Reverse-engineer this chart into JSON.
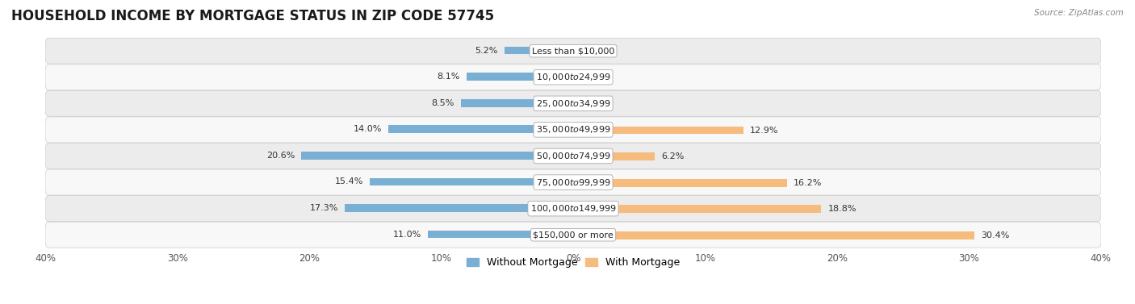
{
  "title": "HOUSEHOLD INCOME BY MORTGAGE STATUS IN ZIP CODE 57745",
  "source": "Source: ZipAtlas.com",
  "categories": [
    "Less than $10,000",
    "$10,000 to $24,999",
    "$25,000 to $34,999",
    "$35,000 to $49,999",
    "$50,000 to $74,999",
    "$75,000 to $99,999",
    "$100,000 to $149,999",
    "$150,000 or more"
  ],
  "without_mortgage": [
    5.2,
    8.1,
    8.5,
    14.0,
    20.6,
    15.4,
    17.3,
    11.0
  ],
  "with_mortgage": [
    0.0,
    0.0,
    0.0,
    12.9,
    6.2,
    16.2,
    18.8,
    30.4
  ],
  "xlim": 40.0,
  "color_without": "#7aafd4",
  "color_with": "#f5bc7e",
  "title_fontsize": 12,
  "label_fontsize": 8,
  "value_fontsize": 8,
  "axis_fontsize": 8.5,
  "legend_fontsize": 9
}
